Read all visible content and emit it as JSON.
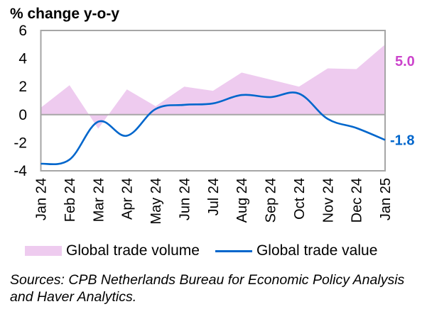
{
  "chart_data": {
    "type": "area",
    "title": "",
    "ylabel": "% change y-o-y",
    "xlabel": "",
    "ylim": [
      -4,
      6
    ],
    "yticks": [
      6,
      4,
      2,
      0,
      -2,
      -4
    ],
    "grid": false,
    "categories": [
      "Jan 24",
      "Feb 24",
      "Mar 24",
      "Apr 24",
      "May 24",
      "Jun 24",
      "Jul 24",
      "Aug 24",
      "Sep 24",
      "Oct 24",
      "Nov 24",
      "Dec 24",
      "Jan 25"
    ],
    "series": [
      {
        "name": "Global trade volume",
        "kind": "area",
        "color": "#eecbef",
        "values": [
          0.5,
          2.1,
          -1.0,
          1.8,
          0.6,
          2.0,
          1.7,
          3.0,
          2.5,
          2.0,
          3.3,
          3.25,
          5.0
        ],
        "end_label": "5.0",
        "end_label_color": "#cc44cc"
      },
      {
        "name": "Global trade value",
        "kind": "line",
        "color": "#0066cc",
        "values": [
          -3.5,
          -3.2,
          -0.5,
          -1.5,
          0.4,
          0.7,
          0.8,
          1.4,
          1.25,
          1.5,
          -0.3,
          -0.95,
          -1.8
        ],
        "end_label": "-1.8",
        "end_label_color": "#0066cc"
      }
    ],
    "legend_position": "bottom"
  },
  "legend": {
    "volume_label": "Global trade volume",
    "value_label": "Global trade value"
  },
  "source_note": "Sources: CPB Netherlands Bureau for Economic Policy Analysis and Haver Analytics."
}
